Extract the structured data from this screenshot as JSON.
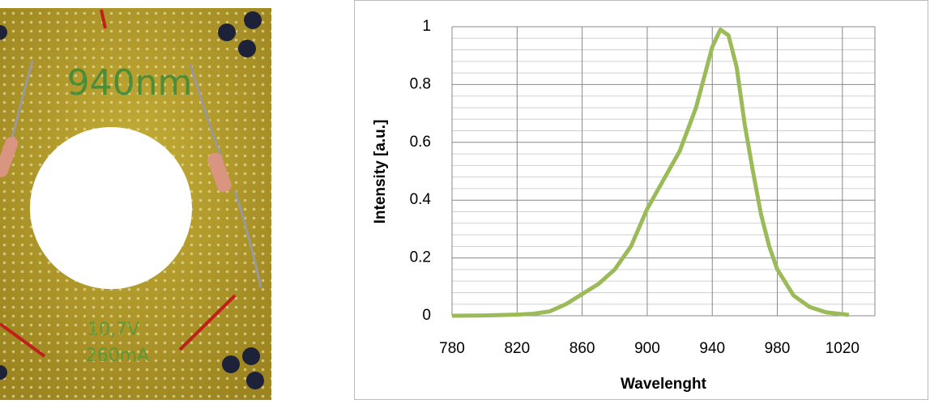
{
  "photo": {
    "labels": [
      "940nm",
      "10,7V",
      "260mA"
    ]
  },
  "chart_data": {
    "type": "line",
    "xlabel": "Wavelenght",
    "ylabel": "Intensity [a.u.]",
    "x": [
      780,
      800,
      820,
      830,
      840,
      850,
      860,
      870,
      880,
      890,
      900,
      910,
      920,
      930,
      940,
      945,
      950,
      955,
      960,
      965,
      970,
      975,
      980,
      990,
      1000,
      1010,
      1024
    ],
    "series": [
      {
        "color": "#9bbb59",
        "values": [
          0,
          0.001,
          0.004,
          0.007,
          0.015,
          0.04,
          0.075,
          0.11,
          0.16,
          0.24,
          0.37,
          0.47,
          0.57,
          0.72,
          0.93,
          0.99,
          0.97,
          0.86,
          0.66,
          0.5,
          0.35,
          0.24,
          0.16,
          0.07,
          0.03,
          0.012,
          0.003
        ]
      }
    ],
    "xlim": [
      780,
      1040
    ],
    "ylim": [
      0,
      1
    ],
    "xticks": [
      780,
      820,
      860,
      900,
      940,
      980,
      1020
    ],
    "yticks": [
      0,
      0.2,
      0.4,
      0.6,
      0.8,
      1
    ],
    "yminorticks": [
      0.04,
      0.08,
      0.12,
      0.16,
      0.24,
      0.28,
      0.32,
      0.36,
      0.44,
      0.48,
      0.52,
      0.56,
      0.64,
      0.68,
      0.72,
      0.76,
      0.84,
      0.88,
      0.92,
      0.96
    ],
    "grid": true
  }
}
